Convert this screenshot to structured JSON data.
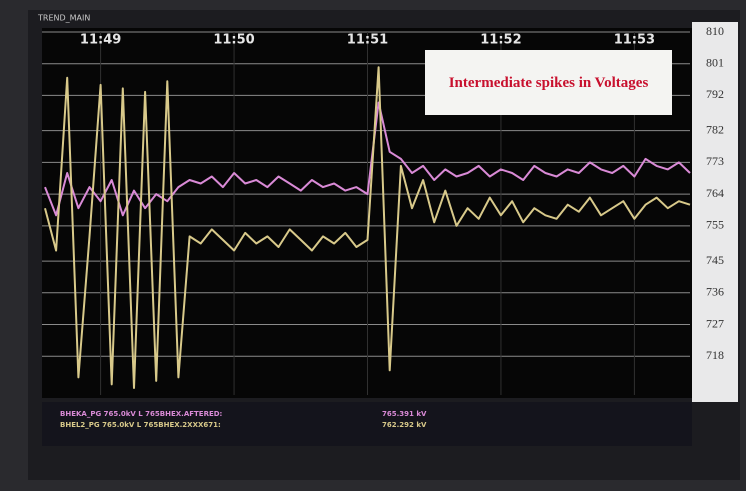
{
  "chart_data": {
    "type": "line",
    "title": "TREND_MAIN",
    "annotation": "Intermediate spikes in Voltages",
    "categories": [
      null,
      null,
      null,
      null,
      null,
      "11:49",
      null,
      null,
      null,
      null,
      null,
      null,
      null,
      null,
      null,
      null,
      null,
      "11:50",
      null,
      null,
      null,
      null,
      null,
      null,
      null,
      null,
      null,
      null,
      null,
      "11:51",
      null,
      null,
      null,
      null,
      null,
      null,
      null,
      null,
      null,
      null,
      null,
      "11:52",
      null,
      null,
      null,
      null,
      null,
      null,
      null,
      null,
      null,
      null,
      null,
      "11:53",
      null,
      null,
      null,
      null,
      null
    ],
    "series": [
      {
        "name": "BHEKA_PG 765.0kV L 765BHEX.AFTERED:",
        "color": "#d98ad6",
        "readout": "765.391 kV",
        "values": [
          766,
          758,
          770,
          760,
          766,
          762,
          768,
          758,
          765,
          760,
          764,
          762,
          766,
          768,
          767,
          769,
          766,
          770,
          767,
          768,
          766,
          769,
          767,
          765,
          768,
          766,
          767,
          765,
          766,
          764,
          790,
          776,
          774,
          770,
          772,
          768,
          771,
          769,
          770,
          772,
          769,
          771,
          770,
          768,
          772,
          770,
          769,
          771,
          770,
          773,
          771,
          770,
          772,
          769,
          774,
          772,
          771,
          773,
          770
        ]
      },
      {
        "name": "BHEL2_PG 765.0kV L 765BHEX.2XXX671:",
        "color": "#d8c98a",
        "readout": "762.292 kV",
        "values": [
          760,
          748,
          797,
          712,
          752,
          795,
          710,
          794,
          709,
          793,
          711,
          796,
          712,
          752,
          750,
          754,
          751,
          748,
          753,
          750,
          752,
          749,
          754,
          751,
          748,
          752,
          750,
          753,
          749,
          751,
          800,
          714,
          772,
          760,
          768,
          756,
          765,
          755,
          760,
          757,
          763,
          758,
          762,
          756,
          760,
          758,
          757,
          761,
          759,
          763,
          758,
          760,
          762,
          757,
          761,
          763,
          760,
          762,
          761
        ]
      }
    ],
    "ylim": [
      707,
      810
    ],
    "yticks": [
      810,
      801,
      792,
      782,
      773,
      764,
      755,
      745,
      736,
      727,
      718
    ],
    "grid": true
  }
}
